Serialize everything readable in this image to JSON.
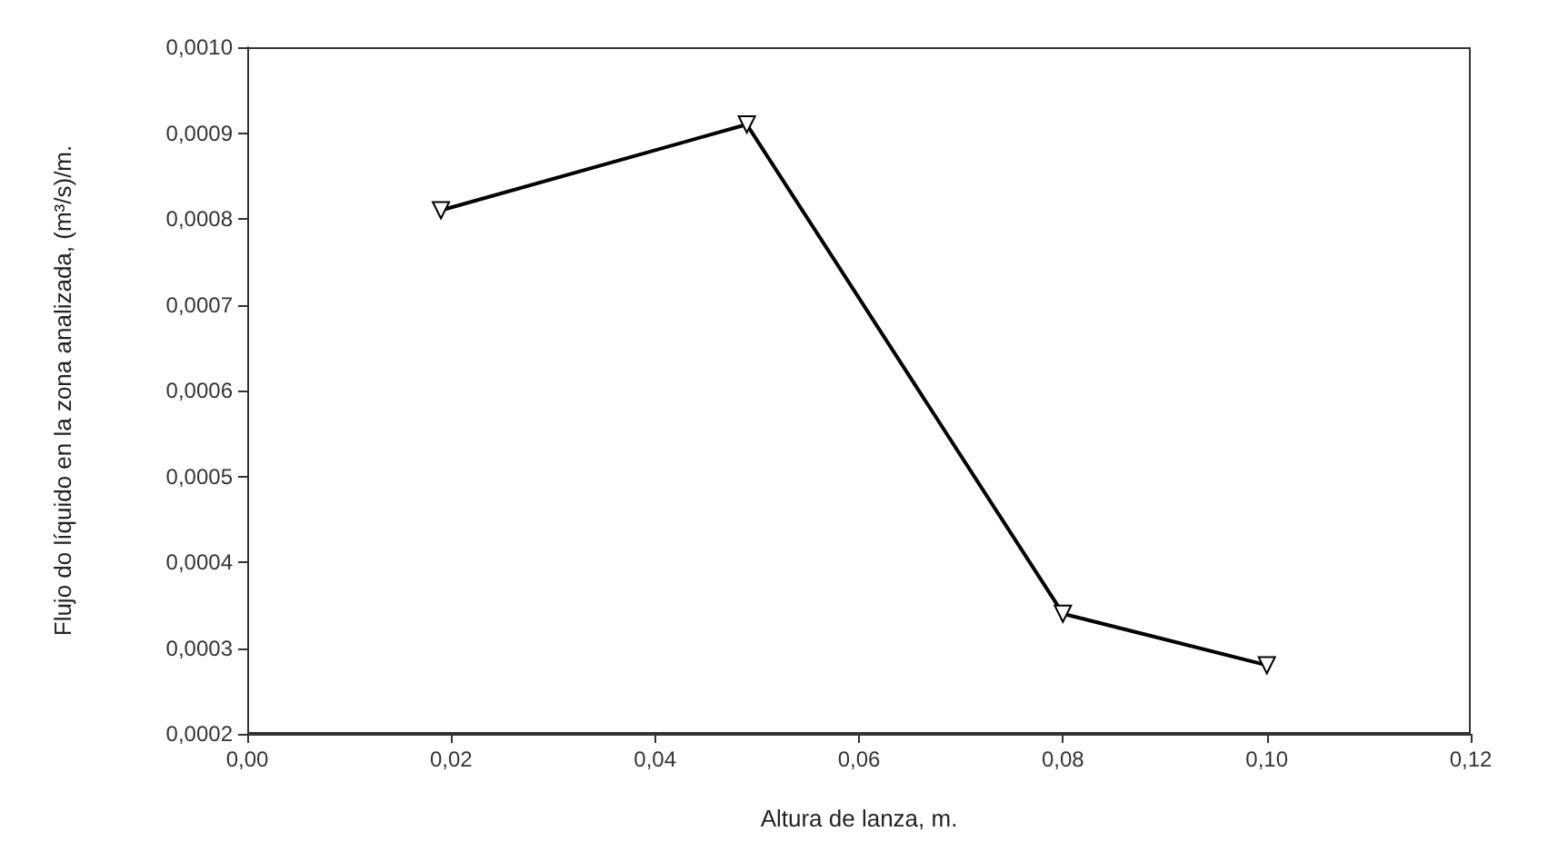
{
  "chart_data": {
    "type": "line",
    "xlabel": "Altura de lanza, m.",
    "ylabel": "Flujo do líquido en la zona analizada, (m³/s)/m.",
    "x": [
      0.019,
      0.049,
      0.08,
      0.1
    ],
    "series": [
      {
        "color": "#000000",
        "values": [
          0.00081,
          0.00091,
          0.00034,
          0.00028
        ]
      }
    ],
    "xlim": [
      0,
      0.12
    ],
    "xticks": [
      {
        "value": 0,
        "label": "0,00"
      },
      {
        "value": 0.02,
        "label": "0,02"
      },
      {
        "value": 0.04,
        "label": "0,04"
      },
      {
        "value": 0.06,
        "label": "0,06"
      },
      {
        "value": 0.08,
        "label": "0,08"
      },
      {
        "value": 0.1,
        "label": "0,10"
      },
      {
        "value": 0.12,
        "label": "0,12"
      }
    ],
    "ylim": [
      0.0002,
      0.001
    ],
    "yticks": [
      {
        "value": 0.0002,
        "label": "0,0002"
      },
      {
        "value": 0.0003,
        "label": "0,0003"
      },
      {
        "value": 0.0004,
        "label": "0,0004"
      },
      {
        "value": 0.0005,
        "label": "0,0005"
      },
      {
        "value": 0.0006,
        "label": "0,0006"
      },
      {
        "value": 0.0007,
        "label": "0,0007"
      },
      {
        "value": 0.0008,
        "label": "0,0008"
      },
      {
        "value": 0.0009,
        "label": "0,0009"
      },
      {
        "value": 0.001,
        "label": "0,0010"
      }
    ],
    "grid": false,
    "marker": "triangle",
    "line_style": "solid"
  }
}
